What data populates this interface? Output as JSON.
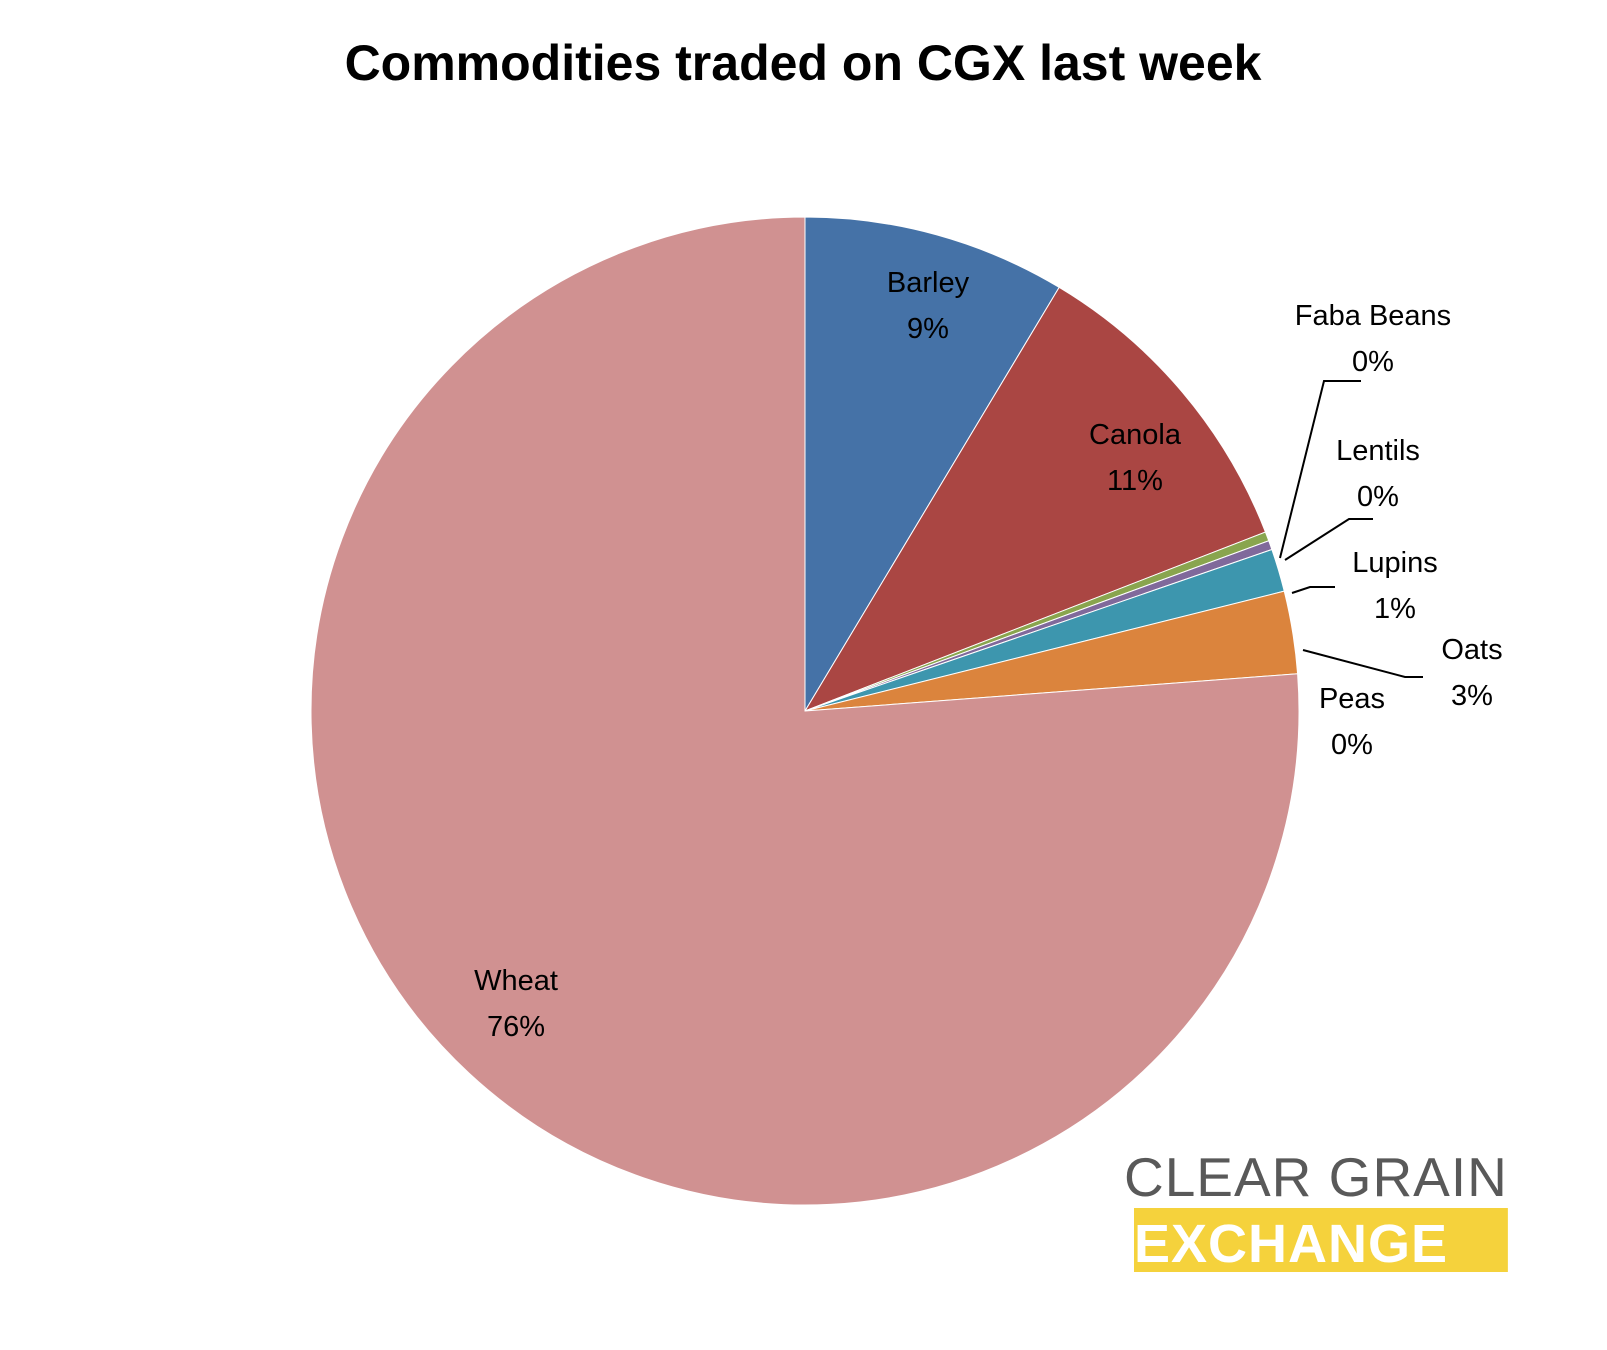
{
  "chart_data": {
    "type": "pie",
    "title": "Commodities traded on CGX last week",
    "slices": [
      {
        "category": "Barley",
        "value": 8.6,
        "label": "9%",
        "color": "#4572A7"
      },
      {
        "category": "Canola",
        "value": 10.5,
        "label": "11%",
        "color": "#AA4643"
      },
      {
        "category": "Faba Beans",
        "value": 0.3,
        "label": "0%",
        "color": "#89A54E"
      },
      {
        "category": "Lentils",
        "value": 0.3,
        "label": "0%",
        "color": "#80699B"
      },
      {
        "category": "Lupins",
        "value": 1.4,
        "label": "1%",
        "color": "#3D96AE"
      },
      {
        "category": "Oats",
        "value": 2.7,
        "label": "3%",
        "color": "#DB843D"
      },
      {
        "category": "Peas",
        "value": 0.0,
        "label": "0%",
        "color": "#92A8CD"
      },
      {
        "category": "Wheat",
        "value": 76.2,
        "label": "76%",
        "color": "#D09191"
      }
    ],
    "start_angle": "12 o'clock",
    "direction": "clockwise",
    "legend": "none"
  },
  "logo": {
    "line1": "CLEAR GRAIN",
    "line2": "EXCHANGE",
    "line1_color": "#595959",
    "line2_color": "#F5D23C"
  }
}
